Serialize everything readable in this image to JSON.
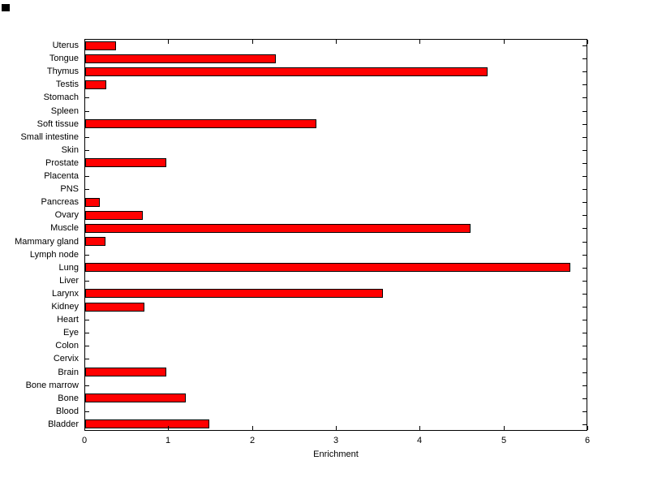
{
  "figure": {
    "background": "#FFFFFF"
  },
  "chart_data": {
    "type": "bar",
    "orientation": "horizontal",
    "title": "",
    "xlabel": "Enrichment",
    "ylabel": "",
    "xlim": [
      0,
      6
    ],
    "xticks": [
      0,
      1,
      2,
      3,
      4,
      5,
      6
    ],
    "grid": false,
    "legend": null,
    "bar_color": "#FF0000",
    "bar_edge_color": "#000000",
    "categories": [
      "Uterus",
      "Tongue",
      "Thymus",
      "Testis",
      "Stomach",
      "Spleen",
      "Soft tissue",
      "Small intestine",
      "Skin",
      "Prostate",
      "Placenta",
      "PNS",
      "Pancreas",
      "Ovary",
      "Muscle",
      "Mammary gland",
      "Lymph node",
      "Lung",
      "Liver",
      "Larynx",
      "Kidney",
      "Heart",
      "Eye",
      "Colon",
      "Cervix",
      "Brain",
      "Bone marrow",
      "Bone",
      "Blood",
      "Bladder"
    ],
    "values": [
      0.37,
      2.27,
      4.8,
      0.25,
      0,
      0,
      2.76,
      0,
      0,
      0.97,
      0,
      0,
      0.17,
      0.69,
      4.6,
      0.24,
      0,
      5.79,
      0,
      3.55,
      0.71,
      0,
      0,
      0,
      0,
      0.97,
      0,
      1.2,
      0,
      1.48
    ]
  }
}
